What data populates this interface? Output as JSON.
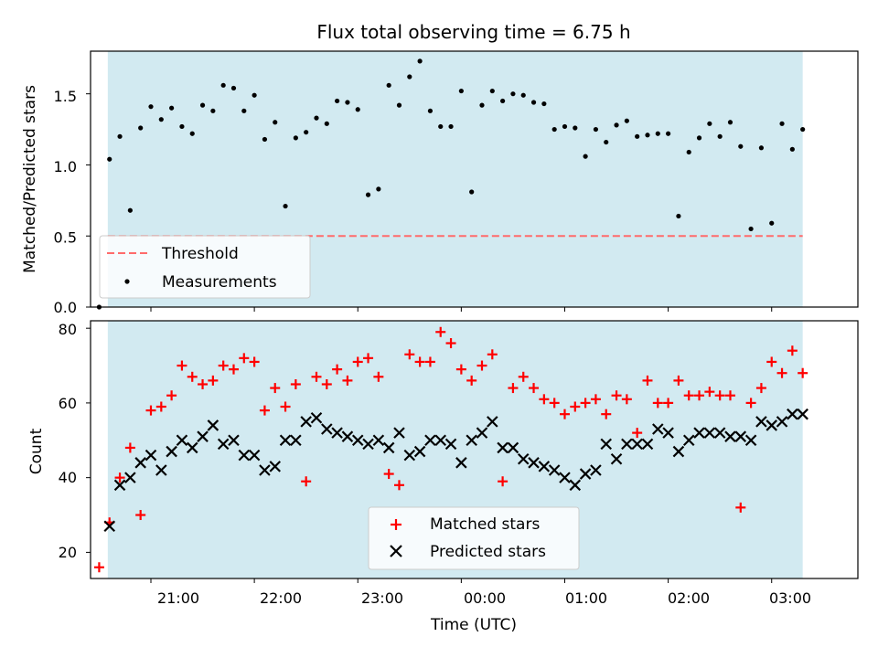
{
  "chart_data": [
    {
      "type": "scatter",
      "title": "Flux total observing time = 6.75 h",
      "ylabel": "Matched/Predicted stars",
      "xlabel": "",
      "xlim": [
        "20:25",
        "03:50"
      ],
      "ylim": [
        0,
        1.8
      ],
      "yticks": [
        "0.0",
        "0.5",
        "1.0",
        "1.5"
      ],
      "shaded_region": [
        "20:35",
        "03:18"
      ],
      "legend_position": "lower-left",
      "series": [
        {
          "name": "Threshold",
          "type": "line",
          "style": "dashed",
          "x": [
            "20:35",
            "03:18"
          ],
          "values": [
            0.5,
            0.5
          ]
        },
        {
          "name": "Measurements",
          "type": "scatter",
          "marker": "dot",
          "x": [
            "20:30",
            "20:36",
            "20:42",
            "20:48",
            "20:54",
            "21:00",
            "21:06",
            "21:12",
            "21:18",
            "21:24",
            "21:30",
            "21:36",
            "21:42",
            "21:48",
            "21:54",
            "22:00",
            "22:06",
            "22:12",
            "22:18",
            "22:24",
            "22:30",
            "22:36",
            "22:42",
            "22:48",
            "22:54",
            "23:00",
            "23:06",
            "23:12",
            "23:18",
            "23:24",
            "23:30",
            "23:36",
            "23:42",
            "23:48",
            "23:54",
            "00:00",
            "00:06",
            "00:12",
            "00:18",
            "00:24",
            "00:30",
            "00:36",
            "00:42",
            "00:48",
            "00:54",
            "01:00",
            "01:06",
            "01:12",
            "01:18",
            "01:24",
            "01:30",
            "01:36",
            "01:42",
            "01:48",
            "01:54",
            "02:00",
            "02:06",
            "02:12",
            "02:18",
            "02:24",
            "02:30",
            "02:36",
            "02:42",
            "02:48",
            "02:54",
            "03:00",
            "03:06",
            "03:12",
            "03:18"
          ],
          "values": [
            0.0,
            1.04,
            1.2,
            0.68,
            1.26,
            1.41,
            1.32,
            1.4,
            1.27,
            1.22,
            1.42,
            1.38,
            1.56,
            1.54,
            1.38,
            1.49,
            1.18,
            1.3,
            0.71,
            1.19,
            1.23,
            1.33,
            1.29,
            1.45,
            1.44,
            1.39,
            0.79,
            0.83,
            1.56,
            1.42,
            1.62,
            1.73,
            1.38,
            1.27,
            1.27,
            1.52,
            0.81,
            1.42,
            1.52,
            1.45,
            1.5,
            1.49,
            1.44,
            1.43,
            1.25,
            1.27,
            1.26,
            1.06,
            1.25,
            1.16,
            1.28,
            1.31,
            1.2,
            1.21,
            1.22,
            1.22,
            0.64,
            1.09,
            1.19,
            1.29,
            1.2,
            1.3,
            1.13,
            0.55,
            1.12,
            0.59,
            1.29,
            1.11,
            1.25
          ]
        }
      ]
    },
    {
      "type": "scatter",
      "xlabel": "Time (UTC)",
      "ylabel": "Count",
      "xlim": [
        "20:25",
        "03:50"
      ],
      "ylim": [
        13,
        82
      ],
      "yticks": [
        "20",
        "40",
        "60",
        "80"
      ],
      "xticks": [
        "21:00",
        "22:00",
        "23:00",
        "00:00",
        "01:00",
        "02:00",
        "03:00"
      ],
      "shaded_region": [
        "20:35",
        "03:18"
      ],
      "legend_position": "lower-center",
      "series": [
        {
          "name": "Matched stars",
          "marker": "plus",
          "color": "#ff0000",
          "x": [
            "20:30",
            "20:36",
            "20:42",
            "20:48",
            "20:54",
            "21:00",
            "21:06",
            "21:12",
            "21:18",
            "21:24",
            "21:30",
            "21:36",
            "21:42",
            "21:48",
            "21:54",
            "22:00",
            "22:06",
            "22:12",
            "22:18",
            "22:24",
            "22:30",
            "22:36",
            "22:42",
            "22:48",
            "22:54",
            "23:00",
            "23:06",
            "23:12",
            "23:18",
            "23:24",
            "23:30",
            "23:36",
            "23:42",
            "23:48",
            "23:54",
            "00:00",
            "00:06",
            "00:12",
            "00:18",
            "00:24",
            "00:30",
            "00:36",
            "00:42",
            "00:48",
            "00:54",
            "01:00",
            "01:06",
            "01:12",
            "01:18",
            "01:24",
            "01:30",
            "01:36",
            "01:42",
            "01:48",
            "01:54",
            "02:00",
            "02:06",
            "02:12",
            "02:18",
            "02:24",
            "02:30",
            "02:36",
            "02:42",
            "02:48",
            "02:54",
            "03:00",
            "03:06",
            "03:12",
            "03:18"
          ],
          "values": [
            16,
            28,
            40,
            48,
            30,
            58,
            59,
            62,
            70,
            67,
            65,
            66,
            70,
            69,
            72,
            71,
            58,
            64,
            59,
            65,
            39,
            67,
            65,
            69,
            66,
            71,
            72,
            67,
            41,
            38,
            73,
            71,
            71,
            79,
            76,
            69,
            66,
            70,
            73,
            39,
            64,
            67,
            64,
            61,
            60,
            57,
            59,
            60,
            61,
            57,
            62,
            61,
            52,
            66,
            60,
            60,
            66,
            62,
            62,
            63,
            62,
            62,
            32,
            60,
            64,
            71,
            68,
            74,
            68
          ]
        },
        {
          "name": "Predicted stars",
          "marker": "x",
          "color": "#000000",
          "x": [
            "20:36",
            "20:42",
            "20:48",
            "20:54",
            "21:00",
            "21:06",
            "21:12",
            "21:18",
            "21:24",
            "21:30",
            "21:36",
            "21:42",
            "21:48",
            "21:54",
            "22:00",
            "22:06",
            "22:12",
            "22:18",
            "22:24",
            "22:30",
            "22:36",
            "22:42",
            "22:48",
            "22:54",
            "23:00",
            "23:06",
            "23:12",
            "23:18",
            "23:24",
            "23:30",
            "23:36",
            "23:42",
            "23:48",
            "23:54",
            "00:00",
            "00:06",
            "00:12",
            "00:18",
            "00:24",
            "00:30",
            "00:36",
            "00:42",
            "00:48",
            "00:54",
            "01:00",
            "01:06",
            "01:12",
            "01:18",
            "01:24",
            "01:30",
            "01:36",
            "01:42",
            "01:48",
            "01:54",
            "02:00",
            "02:06",
            "02:12",
            "02:18",
            "02:24",
            "02:30",
            "02:36",
            "02:42",
            "02:48",
            "02:54",
            "03:00",
            "03:06",
            "03:12",
            "03:18"
          ],
          "values": [
            27,
            38,
            40,
            44,
            46,
            42,
            47,
            50,
            48,
            51,
            54,
            49,
            50,
            46,
            46,
            42,
            43,
            50,
            50,
            55,
            56,
            53,
            52,
            51,
            50,
            49,
            50,
            48,
            52,
            46,
            47,
            50,
            50,
            49,
            44,
            50,
            52,
            55,
            48,
            48,
            45,
            44,
            43,
            42,
            40,
            38,
            41,
            42,
            49,
            45,
            49,
            49,
            49,
            53,
            52,
            47,
            50,
            52,
            52,
            52,
            51,
            51,
            50,
            55,
            54,
            55,
            57,
            57
          ]
        }
      ]
    }
  ]
}
